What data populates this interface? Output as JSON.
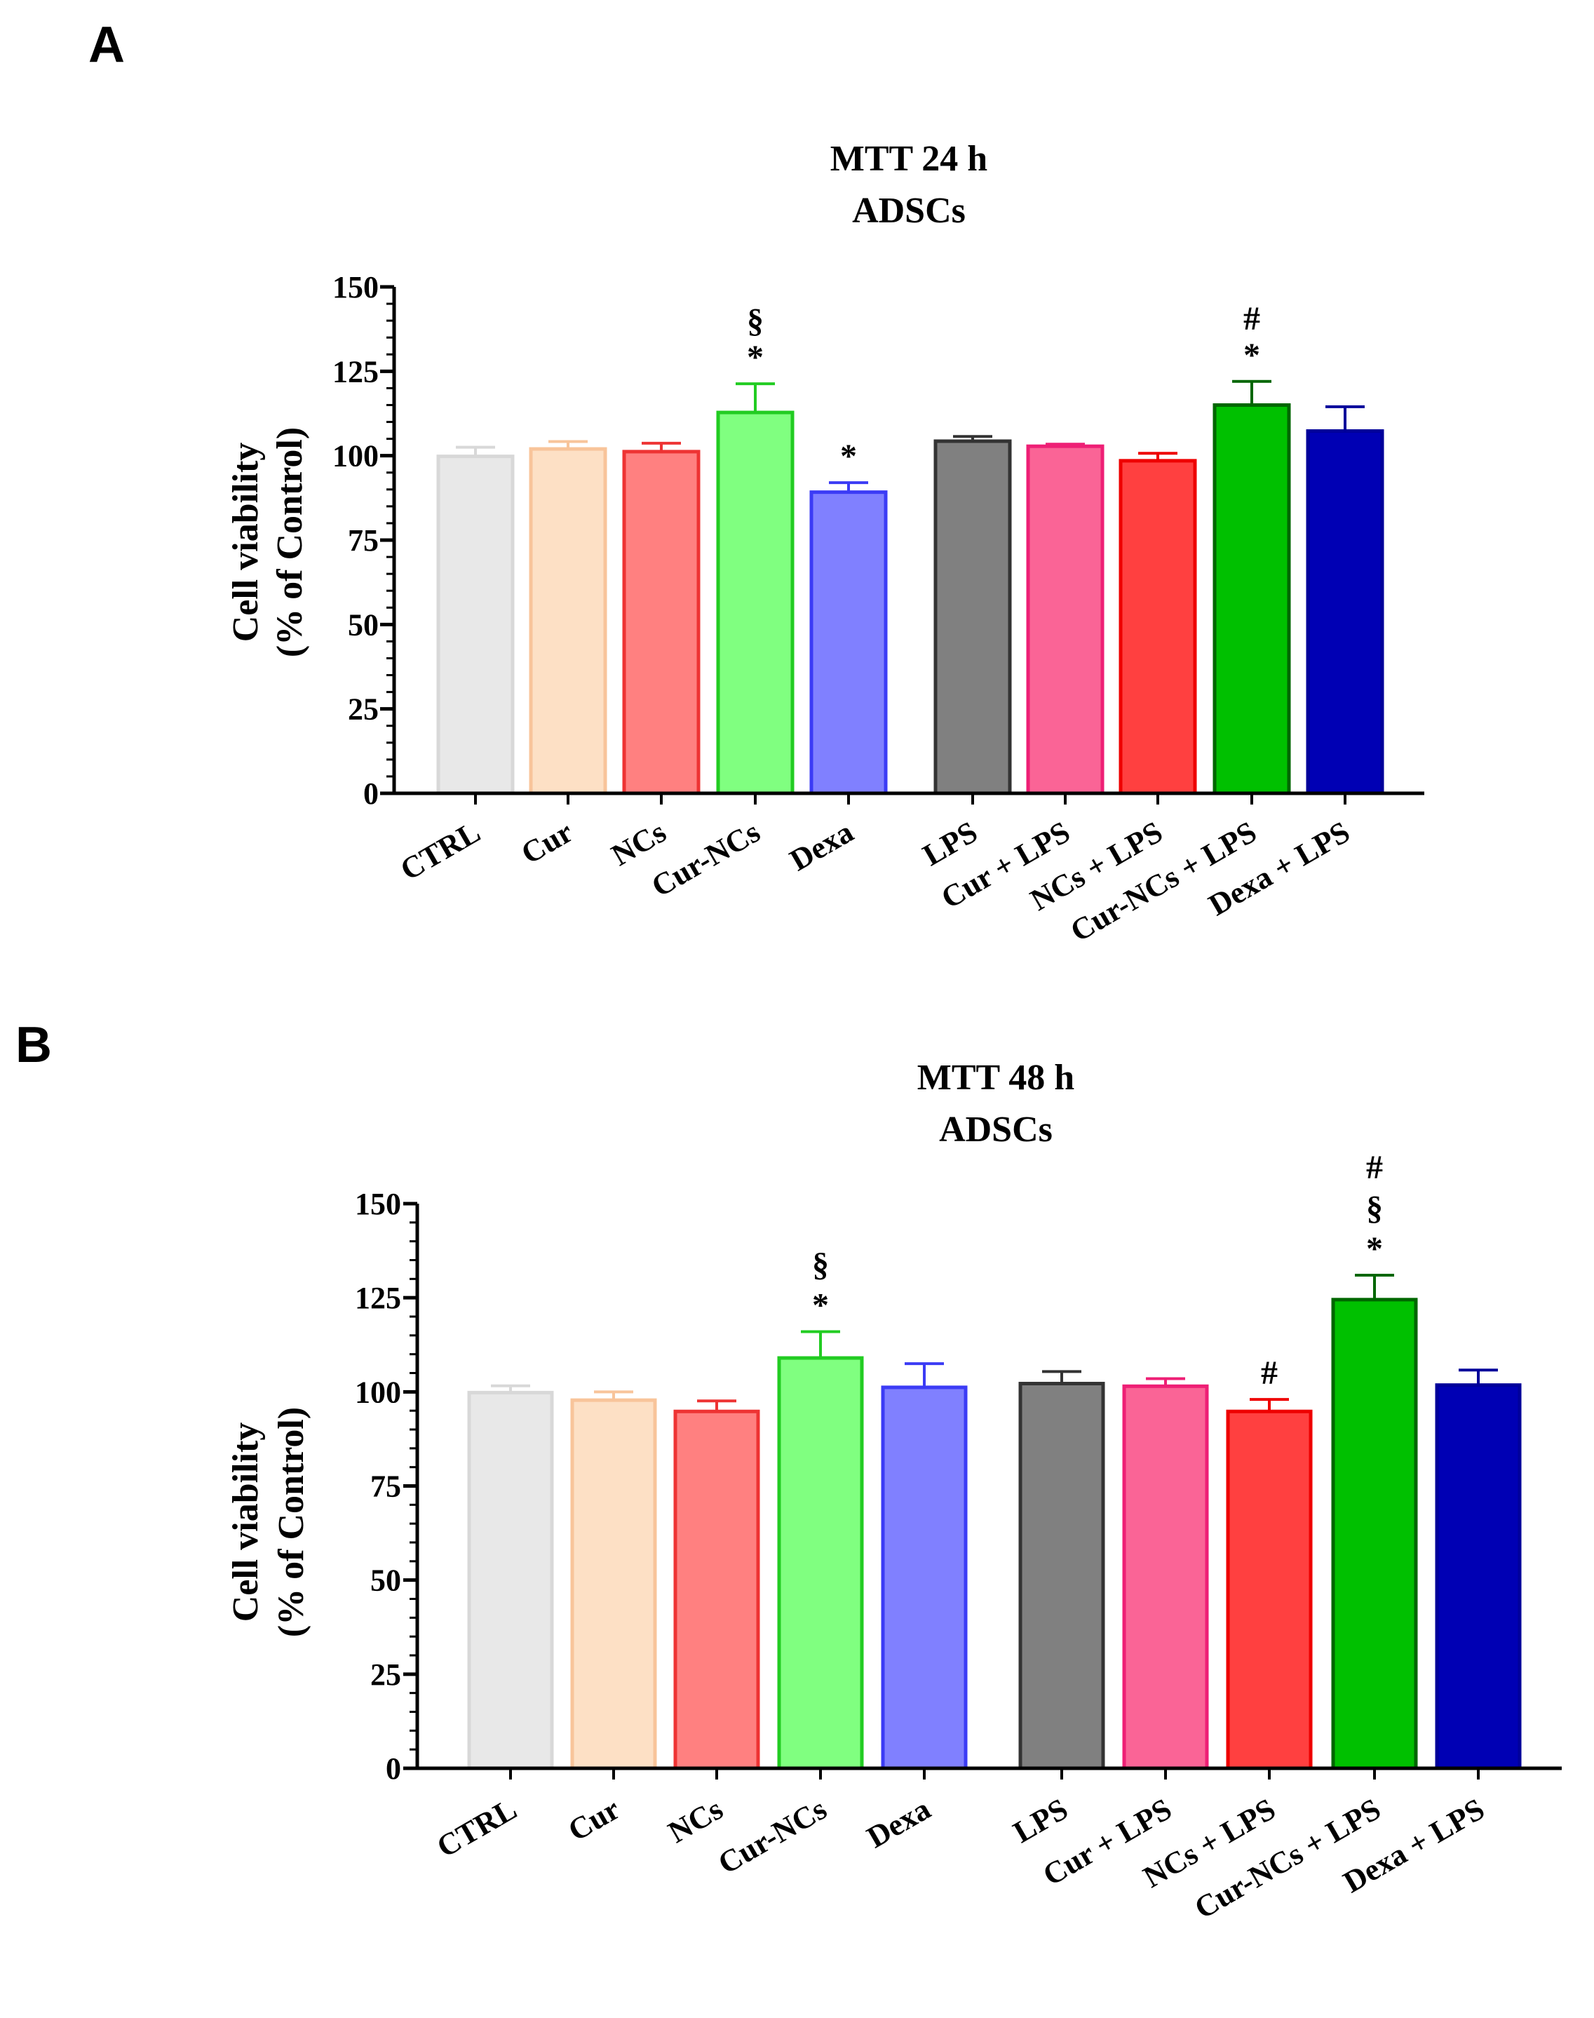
{
  "chart_data": [
    {
      "type": "bar",
      "panel": "A",
      "title": "MTT 24 h",
      "subtitle": "ADSCs",
      "xlabel": "",
      "ylabel": "Cell viability",
      "ylabel2": "(% of Control)",
      "ylim": [
        0,
        150
      ],
      "yticks": [
        0,
        25,
        50,
        75,
        100,
        125,
        150
      ],
      "categories": [
        "CTRL",
        "Cur",
        "NCs",
        "Cur-NCs",
        "Dexa",
        "LPS",
        "Cur + LPS",
        "NCs + LPS",
        "Cur-NCs + LPS",
        "Dexa + LPS"
      ],
      "values": [
        99.8,
        102.0,
        101.2,
        112.8,
        89.2,
        104.3,
        102.8,
        98.5,
        115.0,
        107.3
      ],
      "errors": [
        2.7,
        2.2,
        2.5,
        8.5,
        2.8,
        1.4,
        0.6,
        2.2,
        7.0,
        7.2
      ],
      "significance": [
        "",
        "",
        "",
        "§\n*",
        "*",
        "",
        "",
        "",
        "#\n*",
        ""
      ],
      "fill_colors": [
        "#e8e8e8",
        "#fde0c5",
        "#ff8080",
        "#80ff80",
        "#8080ff",
        "#808080",
        "#fa6496",
        "#ff4040",
        "#00c000",
        "#0000b4"
      ],
      "edge_colors": [
        "#d8d8d8",
        "#f8c49a",
        "#ee3333",
        "#22cc22",
        "#3b3bf5",
        "#333333",
        "#ee1f75",
        "#ee0000",
        "#006600",
        "#00009a"
      ]
    },
    {
      "type": "bar",
      "panel": "B",
      "title": "MTT 48 h",
      "subtitle": "ADSCs",
      "xlabel": "",
      "ylabel": "Cell viability",
      "ylabel2": "(% of Control)",
      "ylim": [
        0,
        150
      ],
      "yticks": [
        0,
        25,
        50,
        75,
        100,
        125,
        150
      ],
      "categories": [
        "CTRL",
        "Cur",
        "NCs",
        "Cur-NCs",
        "Dexa",
        "LPS",
        "Cur + LPS",
        "NCs + LPS",
        "Cur-NCs + LPS",
        "Dexa + LPS"
      ],
      "values": [
        99.8,
        97.8,
        94.8,
        109.0,
        101.2,
        102.2,
        101.5,
        94.8,
        124.5,
        101.8
      ],
      "errors": [
        1.8,
        2.2,
        2.8,
        7.0,
        6.3,
        3.2,
        2.0,
        3.2,
        6.5,
        4.0
      ],
      "significance": [
        "",
        "",
        "",
        "§\n*",
        "",
        "",
        "",
        "#",
        "#\n§\n*",
        ""
      ],
      "fill_colors": [
        "#e8e8e8",
        "#fde0c5",
        "#ff8080",
        "#80ff80",
        "#8080ff",
        "#808080",
        "#fa6496",
        "#ff4040",
        "#00c000",
        "#0000b4"
      ],
      "edge_colors": [
        "#d8d8d8",
        "#f8c49a",
        "#ee3333",
        "#22cc22",
        "#3b3bf5",
        "#333333",
        "#ee1f75",
        "#ee0000",
        "#006600",
        "#00009a"
      ]
    }
  ]
}
